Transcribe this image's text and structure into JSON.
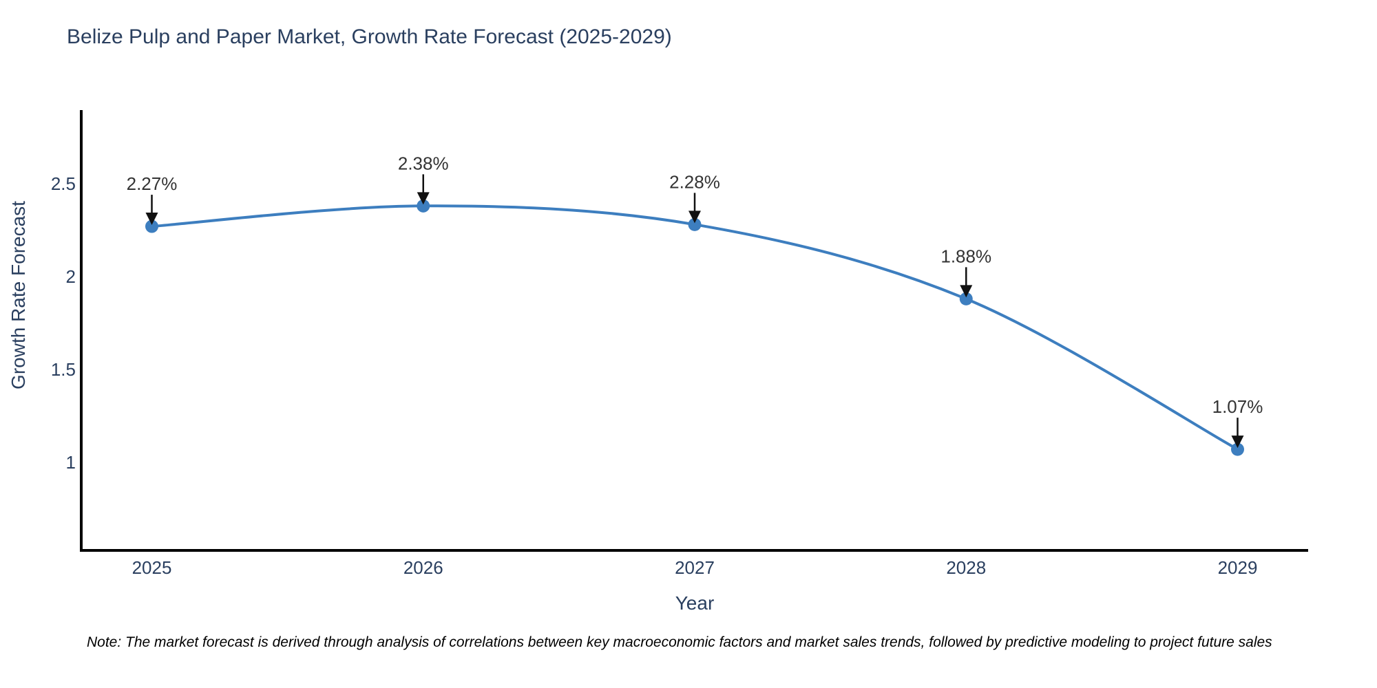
{
  "chart_data": {
    "type": "line",
    "title": "Belize Pulp and Paper Market, Growth Rate Forecast (2025-2029)",
    "xlabel": "Year",
    "ylabel": "Growth Rate Forecast",
    "x": [
      2025,
      2026,
      2027,
      2028,
      2029
    ],
    "y": [
      2.27,
      2.38,
      2.28,
      1.88,
      1.07
    ],
    "point_labels": [
      "2.27%",
      "2.38%",
      "2.28%",
      "1.88%",
      "1.07%"
    ],
    "xticks": [
      2025,
      2026,
      2027,
      2028,
      2029
    ],
    "xtick_labels": [
      "2025",
      "2026",
      "2027",
      "2028",
      "2029"
    ],
    "yticks": [
      1,
      1.5,
      2,
      2.5
    ],
    "ytick_labels": [
      "1",
      "1.5",
      "2",
      "2.5"
    ],
    "xlim": [
      2024.74,
      2029.26
    ],
    "ylim": [
      0.526,
      2.896
    ],
    "line_shape": "spline",
    "grid": false,
    "legend_position": "none",
    "series_name": "Growth Rate Forecast"
  },
  "note": {
    "text": "Note: The market forecast is derived through analysis of correlations between key macroeconomic factors and market sales trends, followed by predictive modeling to project future sales"
  },
  "colors": {
    "background": "#ffffff",
    "line": "#3d7ebf",
    "marker": "#3d7ebf",
    "axis_line": "#000000",
    "text": "#2a3f5f",
    "annotation_text": "#333333",
    "arrow": "#111111",
    "note_text": "#000000"
  }
}
